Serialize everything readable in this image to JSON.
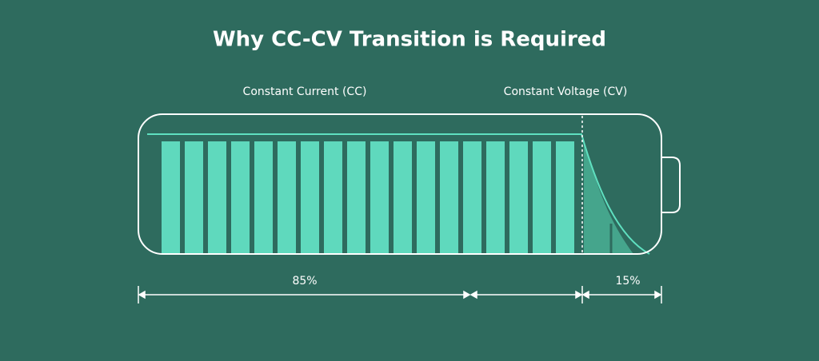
{
  "title": "Why CC-CV Transition is Required",
  "labels": {
    "cc": "Constant Current (CC)",
    "cv": "Constant Voltage (CV)"
  },
  "spans": {
    "cc": "85%",
    "cv": "15%"
  }
}
